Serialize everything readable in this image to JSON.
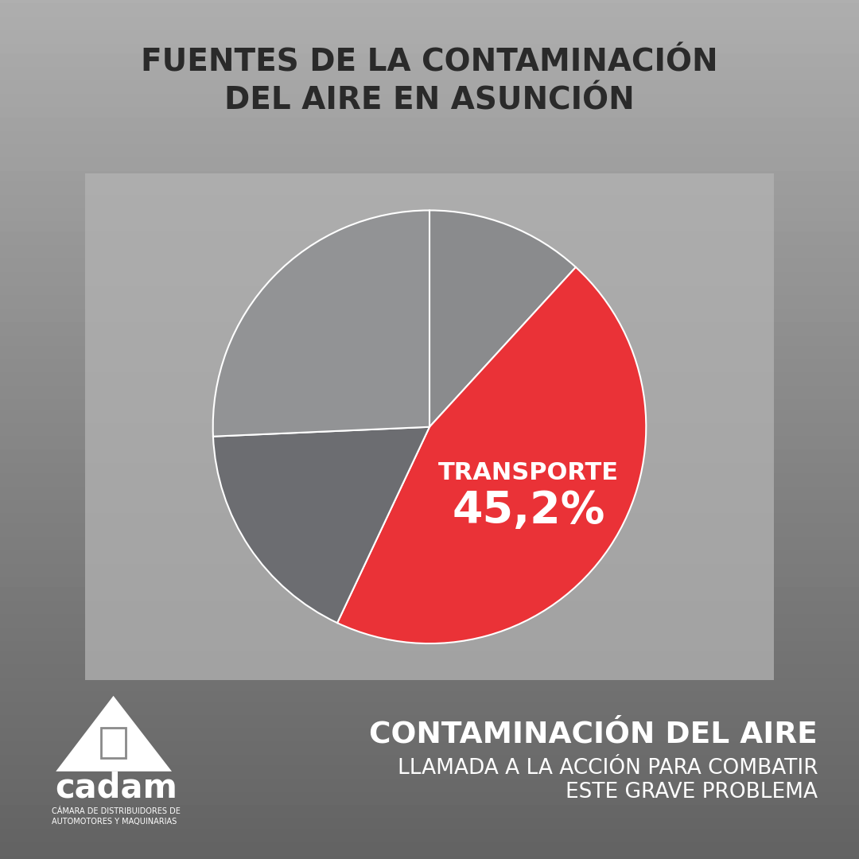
{
  "chart_data": {
    "type": "pie",
    "title": "FUENTES DE LA CONTAMINACIÓN\nDEL AIRE EN ASUNCIÓN",
    "categories": [
      null,
      "TRANSPORTE",
      null,
      null
    ],
    "values": [
      11.8,
      45.2,
      17.3,
      25.7
    ],
    "value_labels": [
      null,
      "45,2%",
      null,
      null
    ],
    "colors": [
      "#8a8b8d",
      "#ea3237",
      "#6c6d71",
      "#929395"
    ]
  },
  "footer": {
    "heading": "CONTAMINACIÓN DEL AIRE",
    "subheading": "LLAMADA A LA ACCIÓN PARA COMBATIR\nESTE GRAVE PROBLEMA"
  },
  "logo": {
    "name": "cadam",
    "caption": "CÁMARA DE DISTRIBUIDORES DE\nAUTOMOTORES Y MAQUINARIAS"
  }
}
